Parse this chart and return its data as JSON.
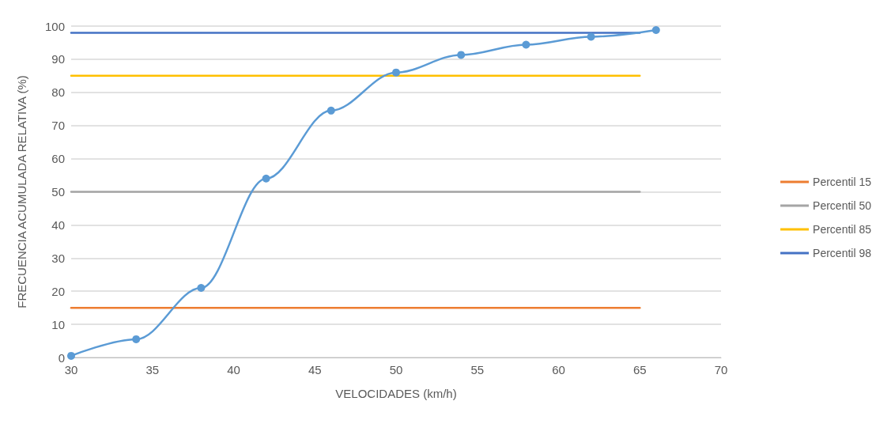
{
  "chart_data": {
    "type": "line",
    "xlabel": "VELOCIDADES (km/h)",
    "ylabel": "FRECUENCIA ACUMULADA RELATIVA (%)",
    "xlim": [
      30,
      70
    ],
    "xticks": [
      30,
      35,
      40,
      45,
      50,
      55,
      60,
      65,
      70
    ],
    "ylim": [
      0,
      100
    ],
    "yticks": [
      0,
      10,
      20,
      30,
      40,
      50,
      60,
      70,
      80,
      90,
      100
    ],
    "grid": "y",
    "legend": "right",
    "marker": "circle",
    "line_style": "solid",
    "series": [
      {
        "color": "#5b9bd5",
        "x": [
          30,
          34,
          38,
          42,
          46,
          50,
          54,
          58,
          62,
          66
        ],
        "values": [
          0.5,
          5.5,
          21,
          54,
          74.5,
          86,
          91.3,
          94.4,
          96.8,
          98.8
        ]
      },
      {
        "name": "Percentil 15",
        "color": "#ed7d31",
        "x": [
          30,
          65
        ],
        "values": [
          15,
          15
        ],
        "marker": "none"
      },
      {
        "name": "Percentil 50",
        "color": "#a5a5a5",
        "x": [
          30,
          65
        ],
        "values": [
          50,
          50
        ],
        "marker": "none"
      },
      {
        "name": "Percentil 85",
        "color": "#ffc000",
        "x": [
          30,
          65
        ],
        "values": [
          85,
          85
        ],
        "marker": "none"
      },
      {
        "name": "Percentil 98",
        "color": "#4472c4",
        "x": [
          30,
          65
        ],
        "values": [
          98,
          98
        ],
        "marker": "none"
      }
    ]
  }
}
